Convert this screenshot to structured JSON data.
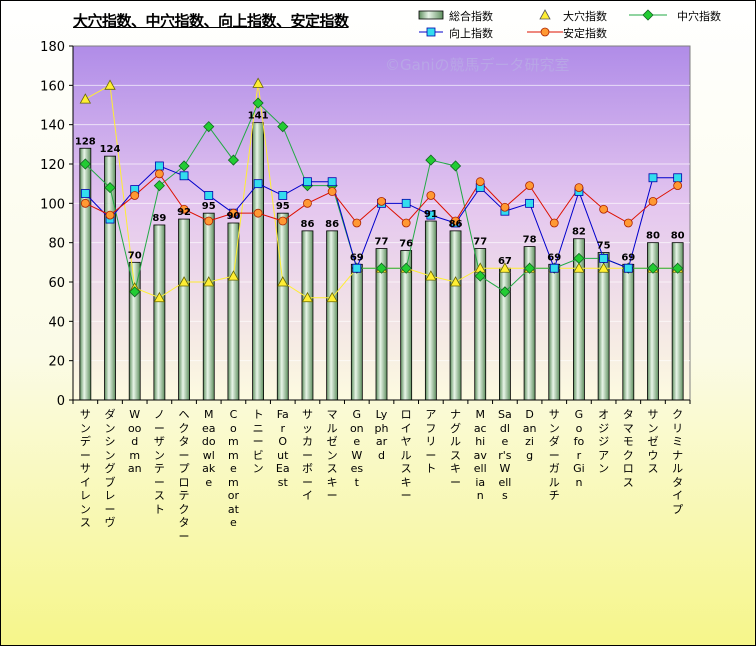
{
  "title": "大穴指数、中穴指数、向上指数、安定指数",
  "watermark": "©Ganiの競馬データ研究室",
  "legend": {
    "total": "総合指数",
    "ooana": "大穴指数",
    "chuuana": "中穴指数",
    "koujou": "向上指数",
    "antei": "安定指数"
  },
  "chart_data": {
    "type": "bar",
    "title": "大穴指数、中穴指数、向上指数、安定指数",
    "ylim": [
      0,
      180
    ],
    "yticks": [
      "0",
      "20",
      "40",
      "60",
      "80",
      "100",
      "120",
      "140",
      "160",
      "180"
    ],
    "grid": true,
    "legend_position": "top-right",
    "categories": [
      "サンデーサイレンス",
      "ダンシングブレーヴ",
      "Woodman",
      "ノーザンテースト",
      "ヘクタープロテクター",
      "Meadowlake",
      "Commemorate",
      "トニービン",
      "Far Out East",
      "サッカーボーイ",
      "マルゼンスキー",
      "Gone West",
      "Lyphard",
      "ロイヤルスキー",
      "アフリート",
      "ナグルスキー",
      "Machiavellian",
      "Sadler's Wells",
      "Danzig",
      "サンダーガルチ",
      "Go for Gin",
      "オジジアン",
      "タマモクロス",
      "サンゼウス",
      "クリミナルタイプ"
    ],
    "series": [
      {
        "name": "総合指数",
        "type": "bar",
        "color": "#9fd4a2",
        "values": [
          128,
          124,
          70,
          89,
          92,
          95,
          90,
          141,
          95,
          86,
          86,
          69,
          77,
          76,
          91,
          86,
          77,
          67,
          78,
          69,
          82,
          75,
          69,
          80,
          80
        ],
        "labels": [
          "128",
          "124",
          "70",
          "89",
          "92",
          "95",
          "90",
          "141",
          "95",
          "86",
          "86",
          "69",
          "77",
          "76",
          "91",
          "86",
          "77",
          "67",
          "78",
          "69",
          "82",
          "75",
          "69",
          "80",
          "80"
        ]
      },
      {
        "name": "大穴指数",
        "type": "line",
        "marker": "triangle",
        "color": "#ffee33",
        "values": [
          153,
          160,
          57,
          52,
          60,
          60,
          63,
          161,
          60,
          52,
          52,
          67,
          67,
          67,
          63,
          60,
          67,
          67,
          67,
          67,
          67,
          67,
          67,
          67,
          67
        ]
      },
      {
        "name": "中穴指数",
        "type": "line",
        "marker": "diamond",
        "color": "#22aa44",
        "values": [
          120,
          108,
          55,
          109,
          119,
          139,
          122,
          151,
          139,
          109,
          109,
          67,
          67,
          67,
          122,
          119,
          63,
          55,
          67,
          67,
          72,
          72,
          67,
          67,
          67
        ]
      },
      {
        "name": "向上指数",
        "type": "line",
        "marker": "square",
        "color": "#0000cc",
        "values": [
          105,
          92,
          107,
          119,
          114,
          104,
          95,
          110,
          104,
          111,
          111,
          67,
          100,
          100,
          94,
          90,
          108,
          96,
          100,
          67,
          106,
          72,
          67,
          113,
          113
        ]
      },
      {
        "name": "安定指数",
        "type": "line",
        "marker": "circle",
        "color": "#dd1100",
        "values": [
          100,
          94,
          104,
          115,
          97,
          91,
          95,
          95,
          91,
          100,
          106,
          90,
          101,
          90,
          104,
          91,
          111,
          98,
          109,
          90,
          108,
          97,
          90,
          101,
          109
        ]
      }
    ]
  }
}
